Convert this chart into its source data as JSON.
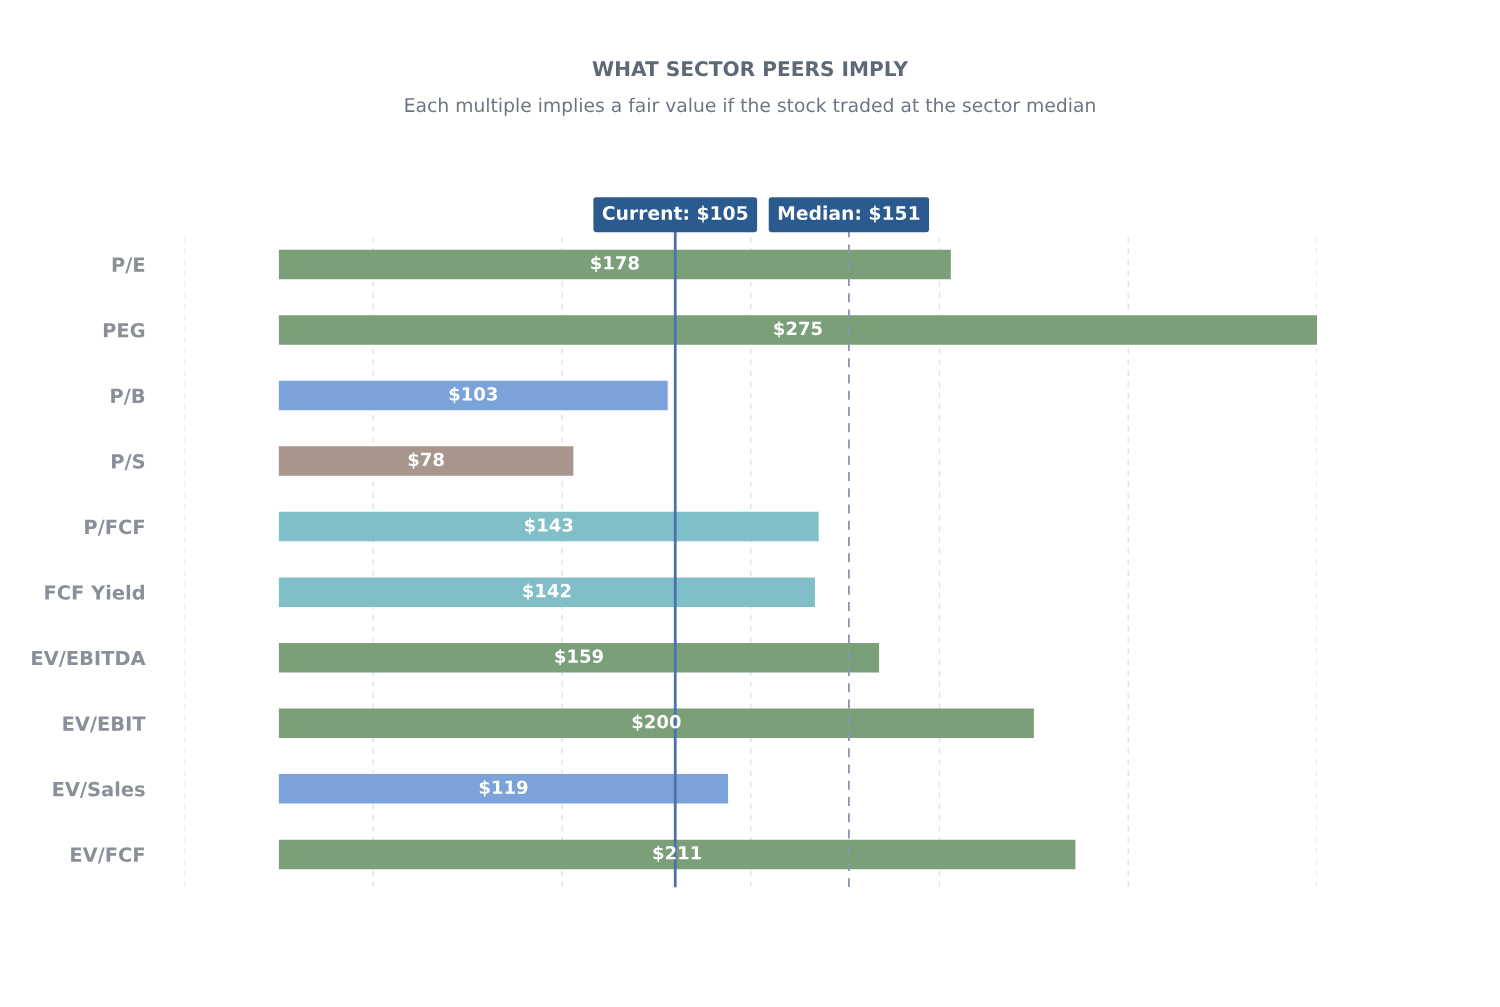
{
  "chart_data": {
    "type": "bar",
    "orientation": "horizontal",
    "title": "WHAT SECTOR PEERS IMPLY",
    "subtitle": "Each multiple implies a fair value if the stock traded at the sector median",
    "categories": [
      "P/E",
      "PEG",
      "P/B",
      "P/S",
      "P/FCF",
      "FCF Yield",
      "EV/EBITDA",
      "EV/EBIT",
      "EV/Sales",
      "EV/FCF"
    ],
    "values": [
      178,
      275,
      103,
      78,
      143,
      142,
      159,
      200,
      119,
      211
    ],
    "colors": [
      "#7b9f79",
      "#7b9f79",
      "#7ba3d9",
      "#a8958c",
      "#80bfc8",
      "#80bfc8",
      "#7b9f79",
      "#7b9f79",
      "#7ba3d9",
      "#7b9f79"
    ],
    "value_labels": [
      "$178",
      "$275",
      "$103",
      "$78",
      "$143",
      "$142",
      "$159",
      "$200",
      "$119",
      "$211"
    ],
    "xlim": [
      -25,
      275
    ],
    "xticks": [
      {
        "value": -25,
        "label": null
      },
      {
        "value": 25,
        "label": null
      },
      {
        "value": 75,
        "label": null
      },
      {
        "value": 125,
        "label": null
      },
      {
        "value": 175,
        "label": null
      },
      {
        "value": 225,
        "label": null
      },
      {
        "value": 275,
        "label": null
      }
    ],
    "ref_lines": [
      {
        "axis": "x",
        "value": 105,
        "label": "Current: $105",
        "color": "#4a72b0",
        "line_style": "solid"
      },
      {
        "axis": "x",
        "value": 151,
        "label": "Median: $151",
        "color": "#8a96b0",
        "line_style": "dashed"
      }
    ],
    "grid": "x",
    "tick_labels": "y",
    "legend": false
  }
}
